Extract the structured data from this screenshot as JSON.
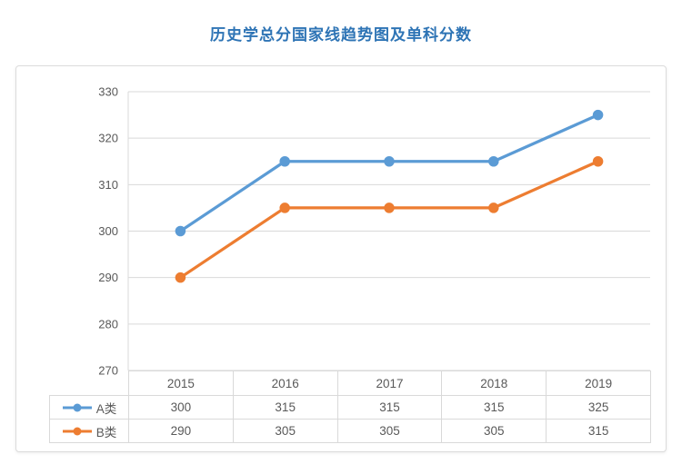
{
  "title": "历史学总分国家线趋势图及单科分数",
  "colors": {
    "title": "#2E74B5",
    "grid": "#D9D9D9",
    "axis_text": "#595959",
    "table_border": "#D9D9D9",
    "table_text": "#595959",
    "card_border": "#DCDCDC",
    "series_a": "#5B9BD5",
    "series_b": "#ED7D31"
  },
  "chart_data": {
    "type": "line",
    "title": "历史学总分国家线趋势图及单科分数",
    "categories": [
      "2015",
      "2016",
      "2017",
      "2018",
      "2019"
    ],
    "series": [
      {
        "name": "A类",
        "values": [
          300,
          315,
          315,
          315,
          325
        ],
        "color": "#5B9BD5"
      },
      {
        "name": "B类",
        "values": [
          290,
          305,
          305,
          305,
          315
        ],
        "color": "#ED7D31"
      }
    ],
    "ylim": [
      270,
      330
    ],
    "yticks": [
      270,
      280,
      290,
      300,
      310,
      320,
      330
    ],
    "grid": true,
    "marker": "circle",
    "legend_position": "table-left",
    "xlabel": "",
    "ylabel": ""
  }
}
